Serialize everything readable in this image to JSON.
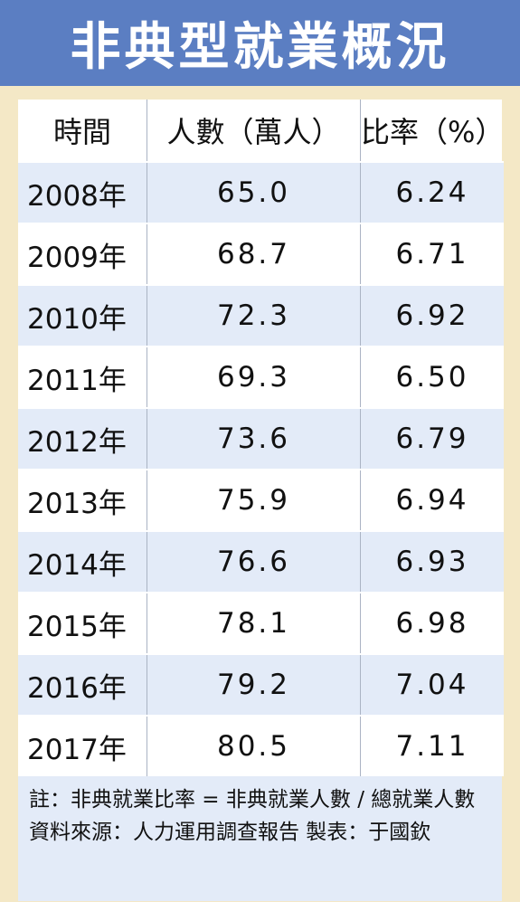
{
  "title": "非典型就業概況",
  "table": {
    "header": [
      "時間",
      "人數（萬人）",
      "比率（%）"
    ],
    "rows": [
      [
        "2008年",
        "65.0",
        "6.24"
      ],
      [
        "2009年",
        "68.7",
        "6.71"
      ],
      [
        "2010年",
        "72.3",
        "6.92"
      ],
      [
        "2011年",
        "69.3",
        "6.50"
      ],
      [
        "2012年",
        "73.6",
        "6.79"
      ],
      [
        "2013年",
        "75.9",
        "6.94"
      ],
      [
        "2014年",
        "76.6",
        "6.93"
      ],
      [
        "2015年",
        "78.1",
        "6.98"
      ],
      [
        "2016年",
        "79.2",
        "7.04"
      ],
      [
        "2017年",
        "80.5",
        "7.11"
      ]
    ]
  },
  "notes": [
    "註：非典就業比率 = 非典就業人數 / 總就業人數",
    "資料來源：人力運用調查報告  製表：于國欽"
  ]
}
